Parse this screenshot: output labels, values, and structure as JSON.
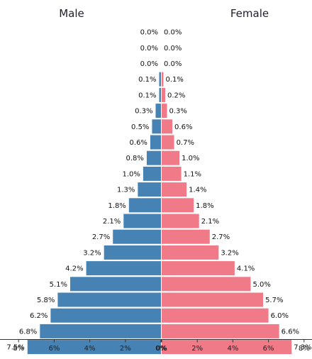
{
  "chart_data": {
    "type": "bar",
    "orientation": "horizontal",
    "subtype": "population-pyramid",
    "series": [
      {
        "name": "Male",
        "color": "#4682b4",
        "values": [
          0.0,
          0.0,
          0.0,
          0.1,
          0.1,
          0.3,
          0.5,
          0.6,
          0.8,
          1.0,
          1.3,
          1.8,
          2.1,
          2.7,
          3.2,
          4.2,
          5.1,
          5.8,
          6.2,
          6.8,
          7.5
        ],
        "labels": [
          "0.0%",
          "0.0%",
          "0.0%",
          "0.1%",
          "0.1%",
          "0.3%",
          "0.5%",
          "0.6%",
          "0.8%",
          "1.0%",
          "1.3%",
          "1.8%",
          "2.1%",
          "2.7%",
          "3.2%",
          "4.2%",
          "5.1%",
          "5.8%",
          "6.2%",
          "6.8%",
          "7.5%"
        ]
      },
      {
        "name": "Female",
        "color": "#f07a87",
        "values": [
          0.0,
          0.0,
          0.0,
          0.1,
          0.2,
          0.3,
          0.6,
          0.7,
          1.0,
          1.1,
          1.4,
          1.8,
          2.1,
          2.7,
          3.2,
          4.1,
          5.0,
          5.7,
          6.0,
          6.6,
          7.3
        ],
        "labels": [
          "0.0%",
          "0.0%",
          "0.0%",
          "0.1%",
          "0.2%",
          "0.3%",
          "0.6%",
          "0.7%",
          "1.0%",
          "1.1%",
          "1.4%",
          "1.8%",
          "2.1%",
          "2.7%",
          "3.2%",
          "4.1%",
          "5.0%",
          "5.7%",
          "6.0%",
          "6.6%",
          "7.3%"
        ]
      }
    ],
    "xlim": [
      0,
      8
    ],
    "x_ticks": [
      8,
      6,
      4,
      2,
      0
    ],
    "x_tick_labels_left": [
      "8%",
      "6%",
      "4%",
      "2%",
      "0%"
    ],
    "x_tick_labels_right": [
      "0%",
      "2%",
      "4%",
      "6%",
      "8%"
    ],
    "grid": false,
    "order": "rows listed top to bottom (oldest age group at top)"
  }
}
